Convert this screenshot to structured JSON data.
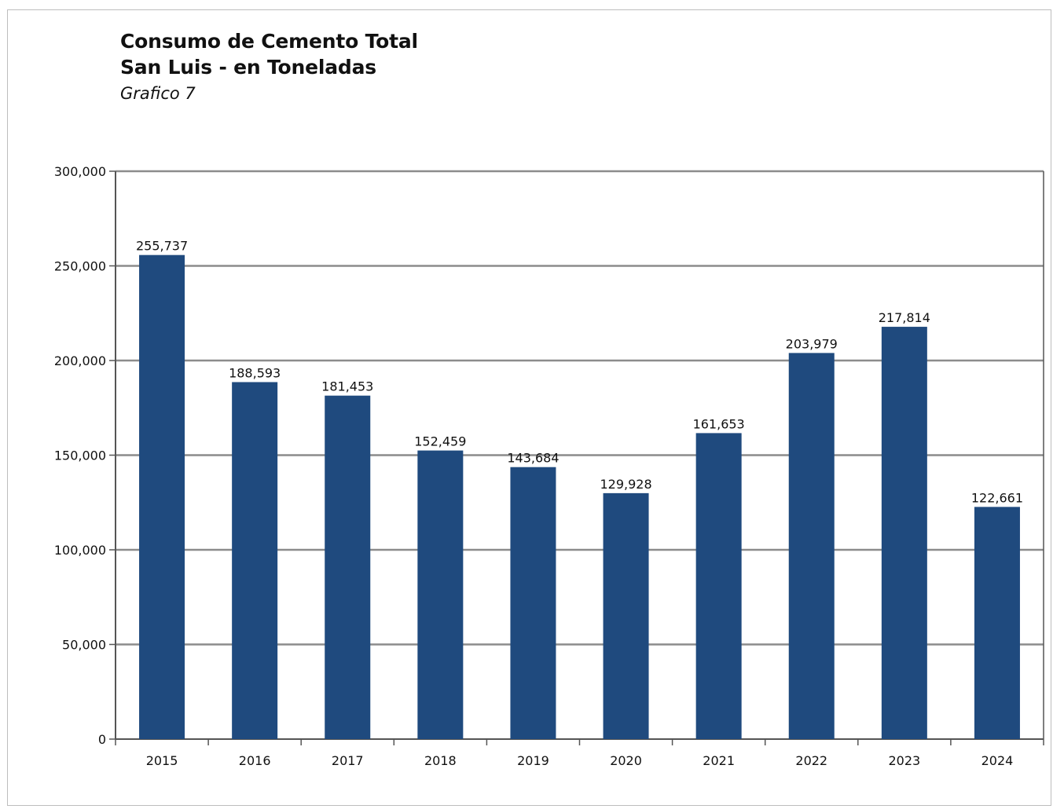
{
  "chart_data": {
    "type": "bar",
    "title_lines": [
      "Consumo de Cemento Total",
      "San Luis - en Toneladas"
    ],
    "subtitle": "Grafico 7",
    "xlabel": "",
    "ylabel": "",
    "categories": [
      "2015",
      "2016",
      "2017",
      "2018",
      "2019",
      "2020",
      "2021",
      "2022",
      "2023",
      "2024"
    ],
    "values": [
      255737,
      188593,
      181453,
      152459,
      143684,
      129928,
      161653,
      203979,
      217814,
      122661
    ],
    "value_labels": [
      "255,737",
      "188,593",
      "181,453",
      "152,459",
      "143,684",
      "129,928",
      "161,653",
      "203,979",
      "217,814",
      "122,661"
    ],
    "ylim": [
      0,
      300000
    ],
    "yticks": [
      0,
      50000,
      100000,
      150000,
      200000,
      250000,
      300000
    ],
    "ytick_labels": [
      "0",
      "50,000",
      "100,000",
      "150,000",
      "200,000",
      "250,000",
      "300,000"
    ],
    "grid": true,
    "legend": "none",
    "bar_color": "#1f4a7e",
    "grid_color": "#8c8c8c",
    "axis_color": "#555555"
  }
}
